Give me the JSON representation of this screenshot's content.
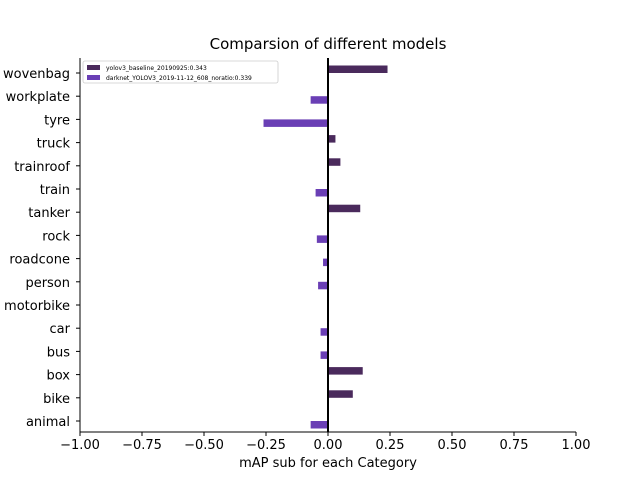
{
  "chart_data": {
    "type": "bar",
    "orientation": "horizontal",
    "title": "Comparsion of different models",
    "xlabel": "mAP sub for each Category",
    "ylabel": "",
    "xlim": [
      -1.0,
      1.0
    ],
    "xticks": [
      "−1.00",
      "−0.75",
      "−0.50",
      "−0.25",
      "0.00",
      "0.25",
      "0.50",
      "0.75",
      "1.00"
    ],
    "xtick_values": [
      -1.0,
      -0.75,
      -0.5,
      -0.25,
      0.0,
      0.25,
      0.5,
      0.75,
      1.0
    ],
    "categories": [
      "animal",
      "bike",
      "box",
      "bus",
      "car",
      "motorbike",
      "person",
      "roadcone",
      "rock",
      "tanker",
      "train",
      "trainroof",
      "truck",
      "tyre",
      "workplate",
      "wovenbag"
    ],
    "series": [
      {
        "name": "yolov3_baseline_20190925:0.343",
        "color": "#4a2a5c",
        "values": [
          0,
          0.1,
          0.14,
          0,
          0,
          0,
          0,
          0,
          0,
          0.13,
          0,
          0.05,
          0.03,
          0,
          0,
          0.24
        ]
      },
      {
        "name": "darknet_YOLOV3_2019-11-12_608_noratio:0.339",
        "color": "#6a3fb5",
        "values": [
          -0.07,
          0,
          0,
          -0.03,
          -0.03,
          0,
          -0.04,
          -0.02,
          -0.045,
          0,
          -0.05,
          0,
          0,
          -0.26,
          -0.07,
          0
        ]
      }
    ],
    "legend_position": "top-left",
    "grid": false
  }
}
